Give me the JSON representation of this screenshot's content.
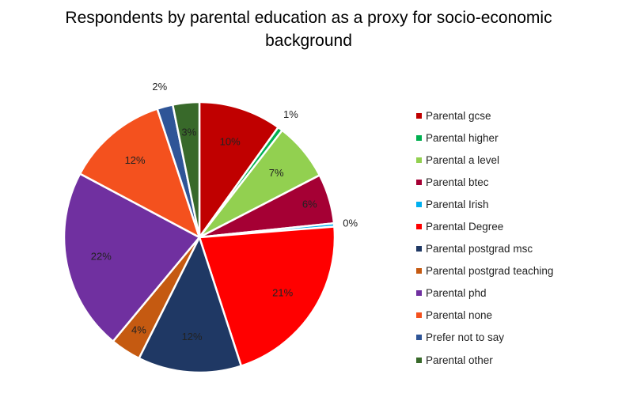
{
  "chart_data": {
    "type": "pie",
    "title": "Respondents by parental education as a proxy for socio-economic background",
    "slices": [
      {
        "label": "Parental gcse",
        "value": 10,
        "display": "10%",
        "color": "#C00000"
      },
      {
        "label": "Parental higher",
        "value": 0.6,
        "display": "1%",
        "color": "#00B050"
      },
      {
        "label": "Parental a level",
        "value": 7,
        "display": "7%",
        "color": "#92D050"
      },
      {
        "label": "Parental btec",
        "value": 6,
        "display": "6%",
        "color": "#A50034"
      },
      {
        "label": "Parental Irish",
        "value": 0.4,
        "display": "0%",
        "color": "#00B0F0"
      },
      {
        "label": "Parental Degree",
        "value": 21.5,
        "display": "21%",
        "color": "#FF0000"
      },
      {
        "label": "Parental postgrad msc",
        "value": 12.5,
        "display": "12%",
        "color": "#1F3864"
      },
      {
        "label": "Parental postgrad teaching",
        "value": 3.7,
        "display": "4%",
        "color": "#C55A11"
      },
      {
        "label": "Parental phd",
        "value": 22,
        "display": "22%",
        "color": "#7030A0"
      },
      {
        "label": "Parental none",
        "value": 12.3,
        "display": "12%",
        "color": "#F4511E"
      },
      {
        "label": "Prefer not to say",
        "value": 1.9,
        "display": "2%",
        "color": "#2F5597"
      },
      {
        "label": "Parental other",
        "value": 3.2,
        "display": "3%",
        "color": "#38692A"
      }
    ],
    "legend_position": "right"
  }
}
